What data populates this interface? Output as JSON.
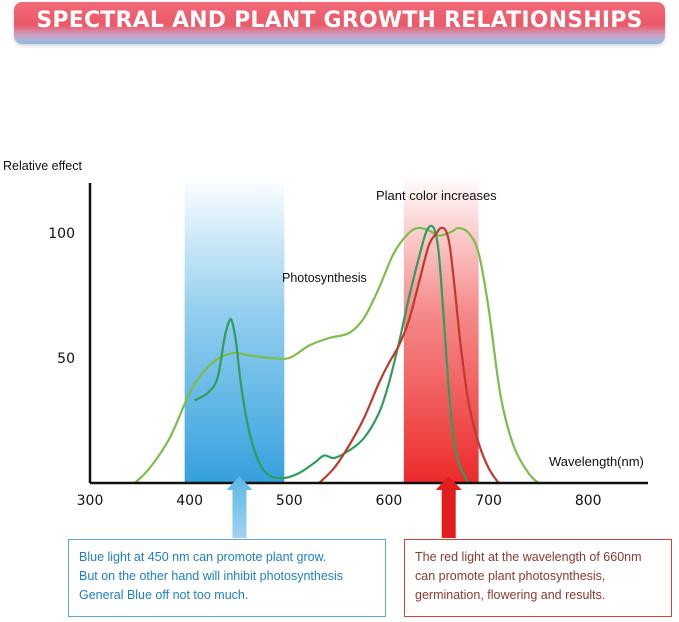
{
  "header": {
    "title": "SPECTRAL AND PLANT GROWTH RELATIONSHIPS"
  },
  "chart_data": {
    "type": "line",
    "ylabel": "Relative effect",
    "xlabel": "Wavelength(nm)",
    "xlim": [
      300,
      860
    ],
    "ylim": [
      0,
      120
    ],
    "x_ticks": [
      300,
      400,
      500,
      600,
      700,
      800
    ],
    "y_ticks": [
      50,
      100
    ],
    "bands": [
      {
        "name": "blue",
        "range": [
          395,
          495
        ],
        "color": "#3aa6e0"
      },
      {
        "name": "red",
        "range": [
          615,
          690
        ],
        "color": "#ee3b3b"
      }
    ],
    "annotations": {
      "photosynthesis": "Photosynthesis",
      "plant_color": "Plant color increases"
    },
    "series": [
      {
        "color": "#7cbd4c",
        "x": [
          345,
          360,
          380,
          400,
          415,
          430,
          445,
          460,
          480,
          500,
          520,
          540,
          560,
          575,
          590,
          605,
          620,
          630,
          640,
          650,
          660,
          665,
          670,
          680,
          690,
          700,
          712,
          725,
          740,
          750
        ],
        "y": [
          0,
          6,
          18,
          36,
          45,
          50,
          52,
          51,
          50,
          50,
          55,
          58,
          60,
          66,
          78,
          92,
          100,
          102,
          101,
          99,
          100,
          101,
          102,
          100,
          92,
          70,
          35,
          15,
          4,
          0
        ]
      },
      {
        "color": "#2e9d5e",
        "x": [
          405,
          418,
          428,
          435,
          440,
          443,
          447,
          452,
          460,
          470,
          480,
          495,
          510,
          525,
          535,
          545,
          560,
          575,
          590,
          600,
          610,
          620,
          630,
          638,
          645,
          650,
          655,
          660,
          665,
          670,
          680
        ],
        "y": [
          33,
          36,
          42,
          58,
          65,
          64,
          55,
          38,
          20,
          8,
          3,
          2,
          4,
          8,
          11,
          10,
          13,
          18,
          28,
          40,
          56,
          74,
          90,
          101,
          102,
          92,
          66,
          38,
          18,
          8,
          0
        ]
      },
      {
        "color": "#c0392b",
        "x": [
          530,
          545,
          560,
          575,
          590,
          600,
          610,
          620,
          630,
          640,
          648,
          652,
          657,
          661,
          666,
          672,
          680,
          690,
          700,
          710
        ],
        "y": [
          0,
          6,
          15,
          26,
          40,
          48,
          55,
          65,
          80,
          95,
          100,
          102,
          101,
          95,
          78,
          55,
          32,
          16,
          6,
          0
        ]
      }
    ],
    "markers": [
      {
        "x": 450,
        "color": "#5bb6e6"
      },
      {
        "x": 660,
        "color": "#e01e1e"
      }
    ]
  },
  "notes": {
    "blue": [
      "Blue light at 450 nm can promote plant grow.",
      "But on the other hand will inhibit photosynthesis",
      "General Blue off not too much."
    ],
    "red": [
      "The red light at the wavelength of 660nm",
      "can promote plant photosynthesis,",
      "germination, flowering and results."
    ]
  }
}
